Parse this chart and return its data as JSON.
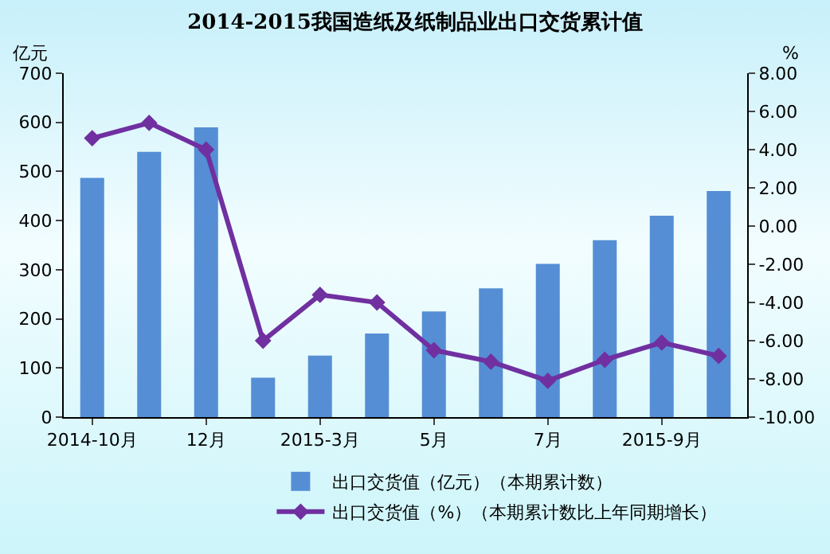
{
  "chart_data": {
    "type": "bar",
    "title": "2014-2015我国造纸及纸制品业出口交货累计值",
    "ylabel": "亿元",
    "y2label": "%",
    "categories": [
      "2014-10月",
      null,
      "12月",
      null,
      "2015-3月",
      null,
      "5月",
      null,
      "7月",
      null,
      "2015-9月",
      null
    ],
    "series": [
      {
        "name": "出口交货值（亿元）（本期累计数）",
        "color": "#558ed5",
        "values": [
          487,
          540,
          590,
          80,
          125,
          170,
          215,
          262,
          312,
          360,
          410,
          460
        ]
      },
      {
        "name": "出口交货值（%）（本期累计数比上年同期增长）",
        "type": "line",
        "axis": "y2",
        "color": "#7030a0",
        "marker": "diamond",
        "values": [
          4.6,
          5.4,
          4.0,
          -6.0,
          -3.6,
          -4.0,
          -6.5,
          -7.1,
          -8.1,
          -7.0,
          -6.1,
          -6.8
        ]
      }
    ],
    "ylim": [
      0,
      700
    ],
    "yticks": [
      0,
      100,
      200,
      300,
      400,
      500,
      600,
      700
    ],
    "y2lim": [
      -10,
      8
    ],
    "y2ticks": [
      {
        "value": -10,
        "label": "-10.00"
      },
      {
        "value": -8,
        "label": "-8.00"
      },
      {
        "value": -6,
        "label": "-6.00"
      },
      {
        "value": -4,
        "label": "-4.00"
      },
      {
        "value": -2,
        "label": "-2.00"
      },
      {
        "value": 0,
        "label": "0.00"
      },
      {
        "value": 2,
        "label": "2.00"
      },
      {
        "value": 4,
        "label": "4.00"
      },
      {
        "value": 6,
        "label": "6.00"
      },
      {
        "value": 8,
        "label": "8.00"
      }
    ],
    "grid": false,
    "legend": "bottom"
  }
}
